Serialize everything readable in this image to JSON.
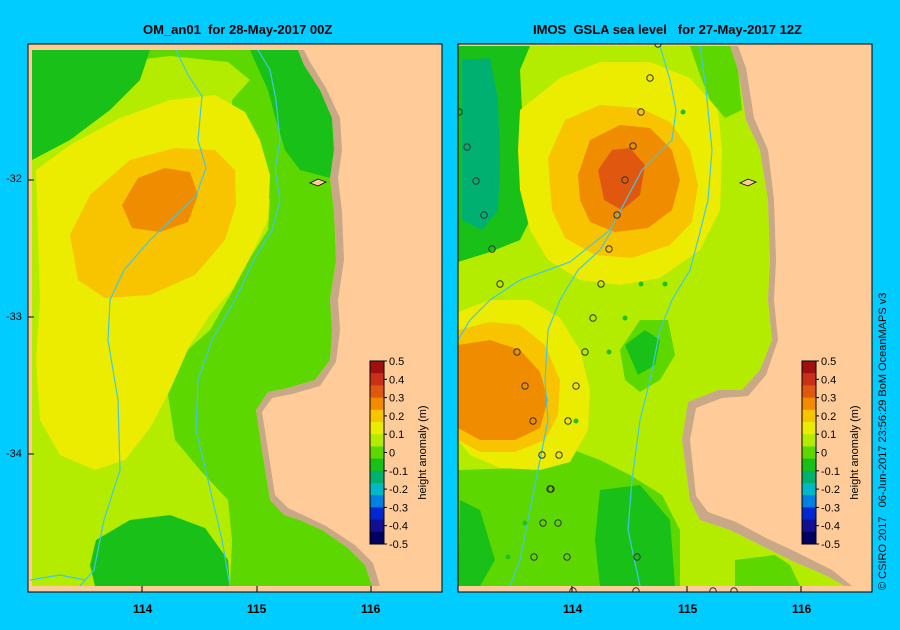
{
  "panels": [
    {
      "title": "OM_an01  for 28-May-2017 00Z"
    },
    {
      "title": "IMOS  GSLA sea level   for 27-May-2017 12Z"
    }
  ],
  "latitude_labels": [
    "-32",
    "-33",
    "-34"
  ],
  "longitude_labels": [
    "114",
    "115",
    "116"
  ],
  "colorbar": {
    "label": "height anomaly (m)",
    "ticks": [
      "0.5",
      "0.4",
      "0.3",
      "0.2",
      "0.1",
      "0",
      "-0.1",
      "-0.2",
      "-0.3",
      "-0.4",
      "-0.5"
    ],
    "colors": [
      "#a01010",
      "#c83018",
      "#e05810",
      "#f08c00",
      "#f8c400",
      "#ecec00",
      "#b4ec00",
      "#5cd800",
      "#18c018",
      "#00b070",
      "#00b8c8",
      "#0080e0",
      "#0028d0",
      "#101090",
      "#000060"
    ]
  },
  "credit": "© CSIRO 2017   06-Jun-2017 23:56:29 BoM OceanMAPS v3",
  "colors": {
    "land": "#ffcc99",
    "coast": "#c8a886",
    "background": "#00ccff",
    "isobath": "#40c8e8"
  }
}
